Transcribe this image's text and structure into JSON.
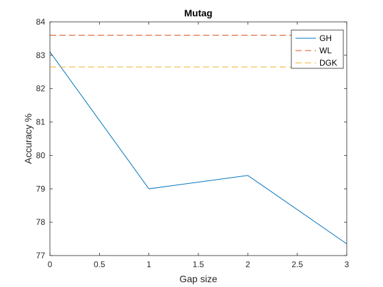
{
  "chart_data": {
    "type": "line",
    "title": "Mutag",
    "xlabel": "Gap size",
    "ylabel": "Accuracy %",
    "xlim": [
      0,
      3
    ],
    "ylim": [
      77,
      84
    ],
    "xticks": [
      0,
      0.5,
      1,
      1.5,
      2,
      2.5,
      3
    ],
    "xtick_labels": [
      "0",
      "0.5",
      "1",
      "1.5",
      "2",
      "2.5",
      "3"
    ],
    "yticks": [
      77,
      78,
      79,
      80,
      81,
      82,
      83,
      84
    ],
    "ytick_labels": [
      "77",
      "78",
      "79",
      "80",
      "81",
      "82",
      "83",
      "84"
    ],
    "grid": false,
    "legend_position": "top-right",
    "series": [
      {
        "name": "GH",
        "style": "solid",
        "color": "#0072BD",
        "x": [
          0,
          1,
          2,
          3
        ],
        "y": [
          83.1,
          79.0,
          79.4,
          77.35
        ]
      },
      {
        "name": "WL",
        "style": "dashed",
        "color": "#D95319",
        "x": [
          0,
          3
        ],
        "y": [
          83.6,
          83.6
        ]
      },
      {
        "name": "DGK",
        "style": "dashed",
        "color": "#EDB120",
        "x": [
          0,
          3
        ],
        "y": [
          82.65,
          82.65
        ]
      }
    ]
  }
}
